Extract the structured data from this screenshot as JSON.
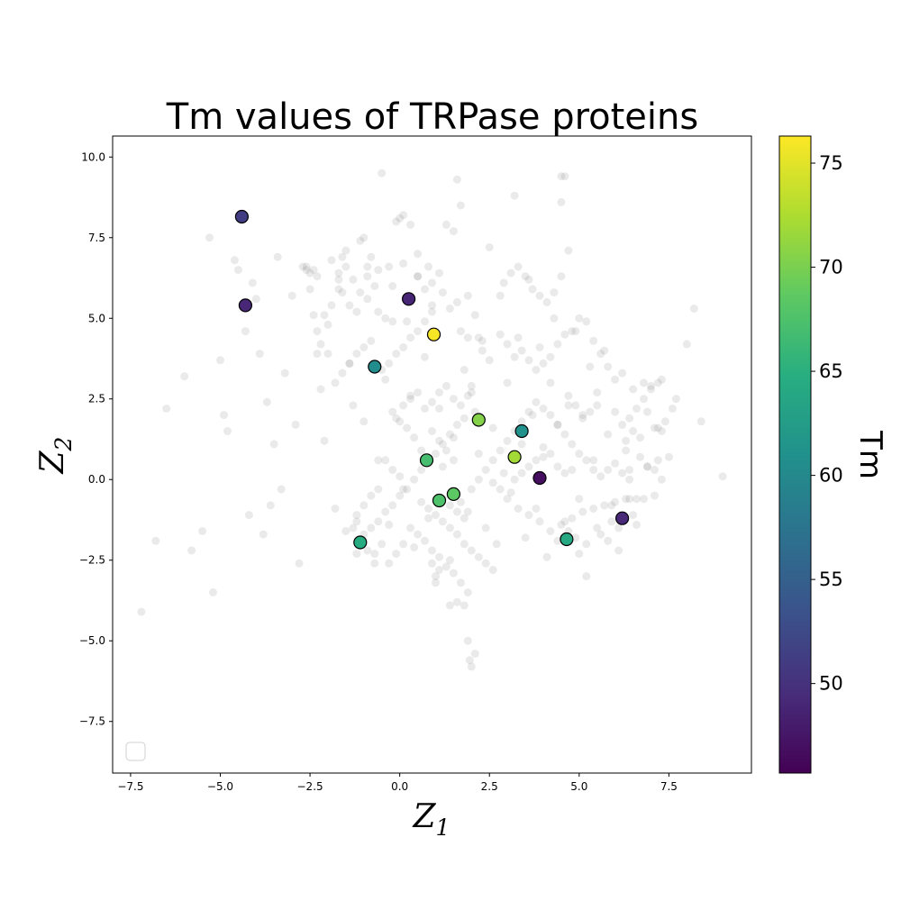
{
  "chart_data": {
    "type": "scatter",
    "title": "Tm values of TRPase proteins",
    "xlabel_base": "Z",
    "xlabel_sub": "1",
    "ylabel_base": "Z",
    "ylabel_sub": "2",
    "xlim": [
      -8.0,
      9.8
    ],
    "ylim": [
      -9.1,
      10.65
    ],
    "xticks": [
      -7.5,
      -5.0,
      -2.5,
      0.0,
      2.5,
      5.0,
      7.5
    ],
    "xtick_labels": [
      "−7.5",
      "−5.0",
      "−2.5",
      "0.0",
      "2.5",
      "5.0",
      "7.5"
    ],
    "yticks": [
      -7.5,
      -5.0,
      -2.5,
      0.0,
      2.5,
      5.0,
      7.5,
      10.0
    ],
    "ytick_labels": [
      "−7.5",
      "−5.0",
      "−2.5",
      "0.0",
      "2.5",
      "5.0",
      "7.5",
      "10.0"
    ],
    "grid": false,
    "legend": "lower-left (empty)",
    "background_color": "#808080",
    "background_points": [
      [
        -7.2,
        -4.1
      ],
      [
        -6.8,
        -1.9
      ],
      [
        -6.5,
        2.2
      ],
      [
        -6.0,
        3.2
      ],
      [
        -5.8,
        -2.2
      ],
      [
        -5.5,
        -1.6
      ],
      [
        -5.3,
        7.5
      ],
      [
        -5.2,
        -3.5
      ],
      [
        -5.0,
        3.7
      ],
      [
        -4.9,
        2.0
      ],
      [
        -4.8,
        1.5
      ],
      [
        -4.6,
        6.8
      ],
      [
        -4.5,
        6.5
      ],
      [
        -4.3,
        4.6
      ],
      [
        -4.2,
        -1.1
      ],
      [
        -4.1,
        6.1
      ],
      [
        -4.0,
        5.6
      ],
      [
        -3.9,
        3.9
      ],
      [
        -3.8,
        -1.7
      ],
      [
        -3.7,
        2.4
      ],
      [
        -3.6,
        -0.8
      ],
      [
        -3.5,
        1.1
      ],
      [
        -3.4,
        6.9
      ],
      [
        -3.3,
        -0.3
      ],
      [
        -3.2,
        3.3
      ],
      [
        -3.0,
        5.7
      ],
      [
        -2.9,
        1.7
      ],
      [
        -2.8,
        -2.6
      ],
      [
        -2.7,
        6.6
      ],
      [
        -2.6,
        6.5
      ],
      [
        -2.5,
        6.4
      ],
      [
        -2.4,
        5.1
      ],
      [
        -2.3,
        3.9
      ],
      [
        -2.2,
        2.8
      ],
      [
        -2.1,
        1.2
      ],
      [
        -2.0,
        4.8
      ],
      [
        -1.9,
        6.8
      ],
      [
        -1.8,
        -0.9
      ],
      [
        -1.7,
        6.2
      ],
      [
        -1.6,
        5.8
      ],
      [
        -1.5,
        -1.6
      ],
      [
        -1.4,
        3.6
      ],
      [
        -1.3,
        2.3
      ],
      [
        -1.2,
        -2.3
      ],
      [
        -1.1,
        7.4
      ],
      [
        -1.0,
        1.8
      ],
      [
        -0.9,
        6.6
      ],
      [
        -0.8,
        4.3
      ],
      [
        -0.7,
        -2.6
      ],
      [
        -0.6,
        0.6
      ],
      [
        -0.5,
        9.5
      ],
      [
        -0.4,
        3.1
      ],
      [
        -0.3,
        -1.4
      ],
      [
        -0.2,
        6.0
      ],
      [
        -0.1,
        1.9
      ],
      [
        0.0,
        8.1
      ],
      [
        0.1,
        -0.3
      ],
      [
        0.2,
        4.9
      ],
      [
        0.3,
        2.6
      ],
      [
        0.4,
        -2.1
      ],
      [
        0.5,
        6.3
      ],
      [
        0.6,
        0.9
      ],
      [
        0.7,
        3.8
      ],
      [
        0.8,
        -1.2
      ],
      [
        0.9,
        5.4
      ],
      [
        1.0,
        -3.0
      ],
      [
        1.1,
        2.2
      ],
      [
        1.2,
        0.4
      ],
      [
        1.3,
        7.9
      ],
      [
        1.4,
        -2.5
      ],
      [
        1.5,
        1.3
      ],
      [
        1.6,
        9.3
      ],
      [
        1.7,
        -0.7
      ],
      [
        1.8,
        3.4
      ],
      [
        1.9,
        -1.0
      ],
      [
        2.0,
        2.7
      ],
      [
        2.1,
        -5.4
      ],
      [
        2.2,
        0.8
      ],
      [
        2.3,
        4.3
      ],
      [
        2.4,
        -1.5
      ],
      [
        2.5,
        7.2
      ],
      [
        2.6,
        1.6
      ],
      [
        2.7,
        -2.0
      ],
      [
        2.8,
        5.7
      ],
      [
        2.9,
        0.2
      ],
      [
        3.0,
        3.0
      ],
      [
        3.1,
        -0.4
      ],
      [
        3.2,
        8.8
      ],
      [
        3.3,
        4.4
      ],
      [
        3.4,
        1.1
      ],
      [
        3.5,
        -1.8
      ],
      [
        3.6,
        6.2
      ],
      [
        3.7,
        2.0
      ],
      [
        3.8,
        -0.9
      ],
      [
        3.9,
        4.1
      ],
      [
        4.0,
        0.7
      ],
      [
        4.1,
        -2.4
      ],
      [
        4.2,
        3.0
      ],
      [
        4.3,
        5.0
      ],
      [
        4.4,
        1.7
      ],
      [
        4.5,
        9.4
      ],
      [
        4.6,
        -1.3
      ],
      [
        4.7,
        2.3
      ],
      [
        4.8,
        0.3
      ],
      [
        4.9,
        4.6
      ],
      [
        5.0,
        -0.6
      ],
      [
        5.1,
        1.9
      ],
      [
        5.2,
        -3.0
      ],
      [
        5.3,
        3.5
      ],
      [
        5.4,
        0.6
      ],
      [
        5.5,
        2.7
      ],
      [
        5.6,
        -1.7
      ],
      [
        5.7,
        4.0
      ],
      [
        5.8,
        1.4
      ],
      [
        5.9,
        -0.8
      ],
      [
        6.0,
        2.1
      ],
      [
        6.1,
        -2.2
      ],
      [
        6.2,
        3.3
      ],
      [
        6.3,
        0.9
      ],
      [
        6.4,
        -0.6
      ],
      [
        6.5,
        2.8
      ],
      [
        6.6,
        -1.4
      ],
      [
        6.7,
        1.3
      ],
      [
        6.8,
        3.0
      ],
      [
        6.9,
        0.4
      ],
      [
        7.0,
        2.9
      ],
      [
        7.1,
        -0.5
      ],
      [
        7.2,
        1.6
      ],
      [
        7.3,
        3.1
      ],
      [
        7.5,
        0.7
      ],
      [
        7.7,
        2.5
      ],
      [
        8.0,
        4.2
      ],
      [
        8.2,
        5.3
      ],
      [
        8.4,
        1.8
      ],
      [
        9.0,
        0.1
      ],
      [
        -2.6,
        6.6
      ],
      [
        -2.4,
        6.5
      ],
      [
        -2.3,
        6.3
      ],
      [
        -2.5,
        5.9
      ],
      [
        -1.6,
        6.9
      ],
      [
        -1.5,
        7.1
      ],
      [
        -1.7,
        6.4
      ],
      [
        -1.4,
        5.4
      ],
      [
        -1.2,
        5.2
      ],
      [
        -1.0,
        7.5
      ],
      [
        -0.8,
        6.9
      ],
      [
        -0.6,
        6.5
      ],
      [
        -0.9,
        6.3
      ],
      [
        -0.3,
        6.6
      ],
      [
        0.1,
        6.7
      ],
      [
        0.5,
        6.3
      ],
      [
        0.7,
        5.9
      ],
      [
        0.9,
        6.1
      ],
      [
        1.2,
        5.8
      ],
      [
        1.4,
        5.3
      ],
      [
        1.6,
        5.5
      ],
      [
        1.9,
        5.7
      ],
      [
        2.1,
        5.1
      ],
      [
        0.3,
        7.9
      ],
      [
        0.1,
        8.2
      ],
      [
        -0.1,
        8.0
      ],
      [
        0.5,
        7.0
      ],
      [
        0.8,
        6.6
      ],
      [
        1.1,
        6.4
      ],
      [
        1.7,
        8.5
      ],
      [
        1.5,
        7.7
      ],
      [
        1.7,
        4.6
      ],
      [
        1.9,
        4.4
      ],
      [
        2.2,
        4.4
      ],
      [
        2.3,
        4.0
      ],
      [
        2.5,
        3.7
      ],
      [
        2.8,
        4.5
      ],
      [
        3.0,
        4.2
      ],
      [
        3.2,
        3.8
      ],
      [
        3.4,
        4.0
      ],
      [
        3.6,
        3.7
      ],
      [
        3.8,
        3.4
      ],
      [
        4.0,
        3.6
      ],
      [
        4.2,
        3.8
      ],
      [
        4.4,
        4.2
      ],
      [
        4.6,
        4.5
      ],
      [
        4.8,
        4.6
      ],
      [
        5.0,
        5.0
      ],
      [
        5.2,
        4.9
      ],
      [
        5.4,
        4.3
      ],
      [
        5.6,
        3.9
      ],
      [
        5.8,
        3.5
      ],
      [
        6.0,
        3.1
      ],
      [
        2.9,
        6.1
      ],
      [
        3.1,
        6.4
      ],
      [
        3.3,
        6.6
      ],
      [
        3.5,
        6.3
      ],
      [
        3.7,
        5.9
      ],
      [
        3.9,
        5.7
      ],
      [
        4.1,
        5.5
      ],
      [
        4.3,
        5.8
      ],
      [
        4.5,
        6.3
      ],
      [
        4.7,
        7.1
      ],
      [
        4.5,
        8.6
      ],
      [
        4.6,
        9.4
      ],
      [
        0.9,
        2.4
      ],
      [
        1.1,
        2.7
      ],
      [
        1.3,
        2.9
      ],
      [
        1.5,
        2.5
      ],
      [
        1.7,
        2.3
      ],
      [
        1.9,
        2.6
      ],
      [
        2.0,
        2.9
      ],
      [
        2.1,
        2.1
      ],
      [
        1.8,
        1.9
      ],
      [
        1.6,
        1.7
      ],
      [
        1.4,
        1.4
      ],
      [
        1.2,
        1.1
      ],
      [
        1.0,
        0.8
      ],
      [
        0.8,
        0.5
      ],
      [
        0.6,
        0.3
      ],
      [
        0.4,
        0.0
      ],
      [
        0.2,
        -0.3
      ],
      [
        0.0,
        -0.5
      ],
      [
        -0.2,
        -0.8
      ],
      [
        -0.4,
        -1.0
      ],
      [
        -0.6,
        -1.3
      ],
      [
        -0.8,
        -1.5
      ],
      [
        -1.0,
        -1.7
      ],
      [
        -1.2,
        -1.1
      ],
      [
        -1.3,
        -1.5
      ],
      [
        -0.9,
        -2.2
      ],
      [
        -0.7,
        -2.3
      ],
      [
        -0.5,
        -2.0
      ],
      [
        0.3,
        -1.5
      ],
      [
        0.5,
        -1.7
      ],
      [
        0.7,
        -1.9
      ],
      [
        0.9,
        -2.2
      ],
      [
        1.1,
        -2.4
      ],
      [
        1.3,
        -2.7
      ],
      [
        1.5,
        -2.9
      ],
      [
        1.7,
        -3.2
      ],
      [
        1.2,
        -0.6
      ],
      [
        1.4,
        -0.8
      ],
      [
        1.6,
        -1.0
      ],
      [
        1.8,
        -1.2
      ],
      [
        2.0,
        -0.3
      ],
      [
        2.2,
        0.0
      ],
      [
        2.4,
        0.3
      ],
      [
        2.6,
        0.6
      ],
      [
        2.8,
        0.9
      ],
      [
        3.0,
        1.2
      ],
      [
        3.2,
        1.5
      ],
      [
        3.4,
        1.8
      ],
      [
        3.6,
        2.1
      ],
      [
        3.8,
        2.4
      ],
      [
        4.0,
        2.2
      ],
      [
        4.2,
        2.0
      ],
      [
        4.4,
        1.7
      ],
      [
        4.6,
        1.4
      ],
      [
        4.8,
        1.1
      ],
      [
        5.0,
        0.8
      ],
      [
        5.2,
        0.6
      ],
      [
        5.4,
        0.3
      ],
      [
        5.6,
        0.1
      ],
      [
        5.8,
        0.3
      ],
      [
        6.0,
        0.5
      ],
      [
        6.2,
        0.2
      ],
      [
        6.4,
        0.0
      ],
      [
        6.6,
        -0.6
      ],
      [
        6.3,
        -0.6
      ],
      [
        6.0,
        -0.7
      ],
      [
        5.7,
        -0.8
      ],
      [
        5.4,
        -0.9
      ],
      [
        5.1,
        -1.0
      ],
      [
        4.8,
        -1.2
      ],
      [
        4.5,
        -1.4
      ],
      [
        4.2,
        -1.6
      ],
      [
        3.9,
        -1.3
      ],
      [
        3.6,
        -1.1
      ],
      [
        3.3,
        -0.9
      ],
      [
        3.0,
        -0.6
      ],
      [
        2.8,
        -0.3
      ],
      [
        2.6,
        -0.1
      ],
      [
        4.7,
        -1.6
      ],
      [
        4.9,
        -1.8
      ],
      [
        5.2,
        -2.0
      ],
      [
        5.0,
        -2.3
      ],
      [
        4.4,
        -1.9
      ],
      [
        6.2,
        1.7
      ],
      [
        6.4,
        1.9
      ],
      [
        6.6,
        2.2
      ],
      [
        6.8,
        2.5
      ],
      [
        7.0,
        2.8
      ],
      [
        7.2,
        3.0
      ],
      [
        6.9,
        2.1
      ],
      [
        7.1,
        1.6
      ],
      [
        7.3,
        1.5
      ],
      [
        6.9,
        0.4
      ],
      [
        7.1,
        0.3
      ],
      [
        7.3,
        0.0
      ],
      [
        5.5,
        2.3
      ],
      [
        5.3,
        2.1
      ],
      [
        5.1,
        2.0
      ],
      [
        4.9,
        2.3
      ],
      [
        4.7,
        2.6
      ],
      [
        4.6,
        0.2
      ],
      [
        4.4,
        0.4
      ],
      [
        4.2,
        0.8
      ],
      [
        4.0,
        1.0
      ],
      [
        3.8,
        0.6
      ],
      [
        3.6,
        0.4
      ],
      [
        3.4,
        0.2
      ],
      [
        3.2,
        0.0
      ],
      [
        0.4,
        1.3
      ],
      [
        0.2,
        1.6
      ],
      [
        0.0,
        1.8
      ],
      [
        -0.2,
        2.1
      ],
      [
        0.1,
        2.3
      ],
      [
        0.3,
        2.5
      ],
      [
        0.5,
        2.7
      ],
      [
        0.7,
        2.2
      ],
      [
        0.9,
        1.5
      ],
      [
        1.1,
        1.2
      ],
      [
        1.3,
        0.9
      ],
      [
        1.5,
        0.6
      ],
      [
        -0.4,
        0.6
      ],
      [
        -0.2,
        0.3
      ],
      [
        0.0,
        0.1
      ],
      [
        -0.6,
        -0.3
      ],
      [
        -0.8,
        -0.5
      ],
      [
        -1.0,
        -0.8
      ],
      [
        -1.2,
        -1.3
      ],
      [
        0.6,
        -0.7
      ],
      [
        0.8,
        -0.9
      ],
      [
        1.0,
        -1.1
      ],
      [
        1.2,
        -1.3
      ],
      [
        1.4,
        -1.5
      ],
      [
        1.6,
        -1.7
      ],
      [
        1.8,
        -2.0
      ],
      [
        2.0,
        -2.2
      ],
      [
        2.2,
        -2.4
      ],
      [
        2.4,
        -2.6
      ],
      [
        2.6,
        -2.8
      ],
      [
        1.9,
        -3.5
      ],
      [
        1.8,
        -3.9
      ],
      [
        1.6,
        -3.8
      ],
      [
        1.4,
        -3.9
      ],
      [
        1.9,
        -5.0
      ],
      [
        1.95,
        -5.6
      ],
      [
        2.0,
        -5.8
      ],
      [
        -0.3,
        -2.6
      ],
      [
        -0.1,
        -2.3
      ],
      [
        0.1,
        -2.0
      ],
      [
        1.0,
        -3.2
      ],
      [
        1.1,
        -2.8
      ],
      [
        0.9,
        -2.6
      ],
      [
        6.8,
        -0.6
      ],
      [
        6.5,
        -1.1
      ],
      [
        5.9,
        -1.3
      ],
      [
        5.5,
        -1.5
      ],
      [
        6.1,
        -1.5
      ],
      [
        5.8,
        -1.9
      ],
      [
        6.3,
        1.2
      ],
      [
        6.5,
        1.5
      ],
      [
        6.7,
        0.7
      ],
      [
        6.4,
        0.3
      ],
      [
        7.2,
        0.6
      ],
      [
        7.4,
        1.8
      ],
      [
        7.6,
        2.2
      ],
      [
        -0.5,
        3.4
      ],
      [
        -0.3,
        3.6
      ],
      [
        -0.1,
        3.9
      ],
      [
        0.1,
        4.1
      ],
      [
        0.3,
        4.4
      ],
      [
        0.5,
        4.6
      ],
      [
        0.7,
        4.9
      ],
      [
        0.9,
        5.2
      ],
      [
        -0.2,
        4.9
      ],
      [
        -0.4,
        5.0
      ],
      [
        -0.6,
        5.2
      ],
      [
        -1.0,
        4.1
      ],
      [
        -1.2,
        3.9
      ],
      [
        -1.4,
        3.6
      ],
      [
        -1.6,
        3.3
      ],
      [
        -1.8,
        3.0
      ],
      [
        -2.0,
        3.9
      ],
      [
        -2.2,
        4.2
      ],
      [
        -2.3,
        4.6
      ],
      [
        -2.1,
        5.1
      ],
      [
        -1.9,
        5.4
      ],
      [
        -1.7,
        5.9
      ],
      [
        -1.5,
        6.6
      ],
      [
        -1.3,
        6.2
      ],
      [
        -1.1,
        5.8
      ],
      [
        -0.9,
        5.6
      ],
      [
        -0.7,
        6.0
      ]
    ],
    "highlight_points": [
      {
        "x": -4.4,
        "y": 8.15,
        "tm": 51.2
      },
      {
        "x": -4.3,
        "y": 5.4,
        "tm": 49.0
      },
      {
        "x": 0.25,
        "y": 5.6,
        "tm": 48.8
      },
      {
        "x": 0.95,
        "y": 4.5,
        "tm": 76.0
      },
      {
        "x": -0.7,
        "y": 3.5,
        "tm": 60.5
      },
      {
        "x": 2.2,
        "y": 1.85,
        "tm": 70.5
      },
      {
        "x": 3.4,
        "y": 1.5,
        "tm": 61.0
      },
      {
        "x": 3.2,
        "y": 0.7,
        "tm": 72.0
      },
      {
        "x": 3.9,
        "y": 0.05,
        "tm": 46.8
      },
      {
        "x": 0.75,
        "y": 0.6,
        "tm": 67.0
      },
      {
        "x": 1.1,
        "y": -0.65,
        "tm": 67.5
      },
      {
        "x": 1.5,
        "y": -0.45,
        "tm": 68.5
      },
      {
        "x": -1.1,
        "y": -1.95,
        "tm": 64.5
      },
      {
        "x": 4.65,
        "y": -1.85,
        "tm": 64.0
      },
      {
        "x": 6.2,
        "y": -1.2,
        "tm": 49.2
      }
    ],
    "colorbar": {
      "label": "Tm",
      "colormap": "viridis",
      "vmin": 45.7,
      "vmax": 76.3,
      "ticks": [
        50,
        55,
        60,
        65,
        70,
        75
      ],
      "tick_labels": [
        "50",
        "55",
        "60",
        "65",
        "70",
        "75"
      ]
    }
  }
}
